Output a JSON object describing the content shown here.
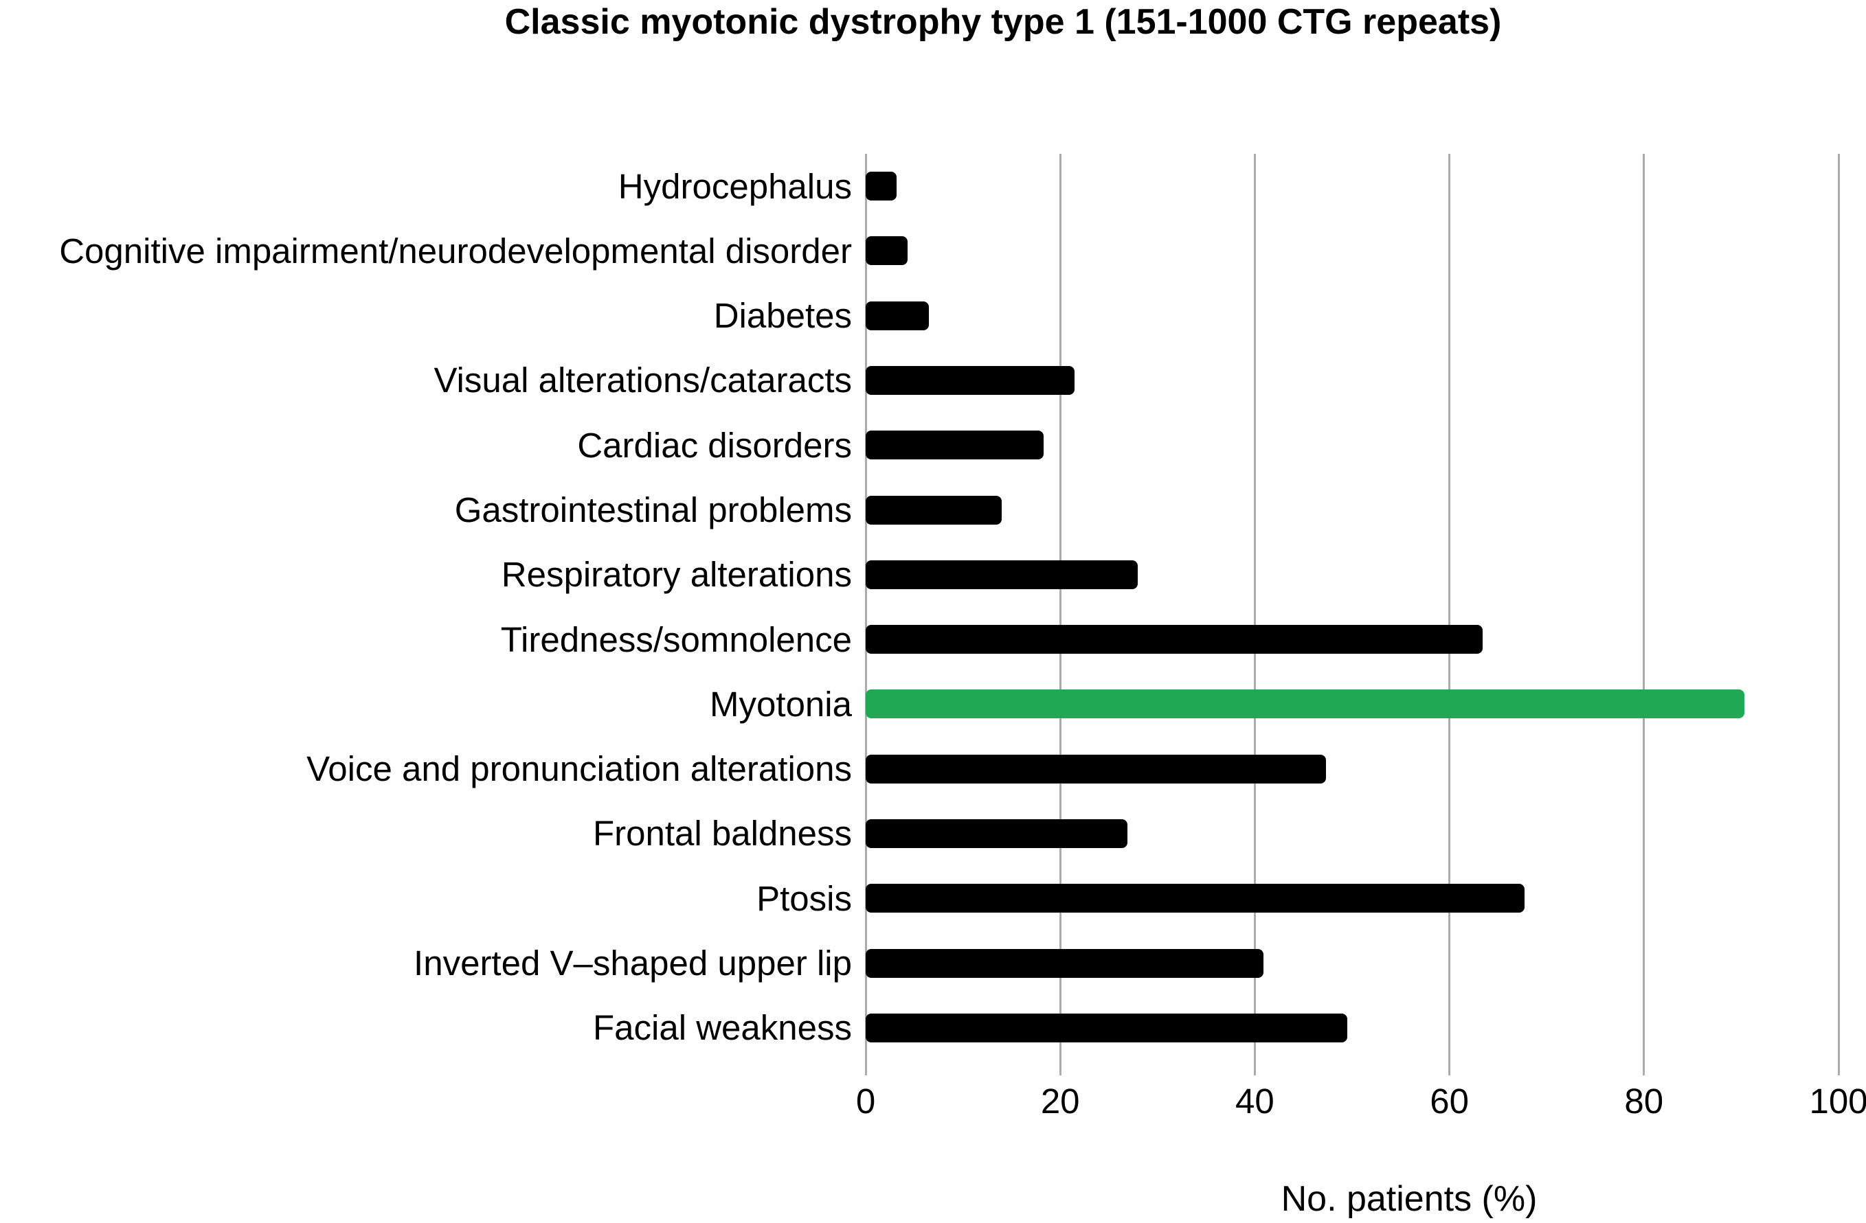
{
  "figure": {
    "title": "Classic myotonic dystrophy type 1 (151-1000 CTG repeats)"
  },
  "chart_data": {
    "type": "bar",
    "orientation": "horizontal",
    "title": "Classic myotonic dystrophy type 1 (151-1000 CTG repeats)",
    "xlabel": "No. patients (%)",
    "ylabel": "",
    "xlim": [
      0,
      100
    ],
    "xticks": [
      "0",
      "20",
      "40",
      "60",
      "80",
      "100"
    ],
    "grid": true,
    "legend": "none",
    "categories": [
      "Hydrocephalus",
      "Cognitive impairment/neurodevelopmental disorder",
      "Diabetes",
      "Visual alterations/cataracts",
      "Cardiac disorders",
      "Gastrointestinal problems",
      "Respiratory alterations",
      "Tiredness/somnolence",
      "Myotonia",
      "Voice and pronunciation alterations",
      "Frontal baldness",
      "Ptosis",
      "Inverted V–shaped upper lip",
      "Facial weakness"
    ],
    "values": [
      3.2,
      4.3,
      6.5,
      21.5,
      18.3,
      14.0,
      28.0,
      63.4,
      90.3,
      47.3,
      26.9,
      67.7,
      40.9,
      49.5
    ],
    "colors": {
      "bar": "#000000",
      "gridline": "#ababab",
      "highlight": "#21a854"
    },
    "highlight_category": "Myotonia"
  }
}
